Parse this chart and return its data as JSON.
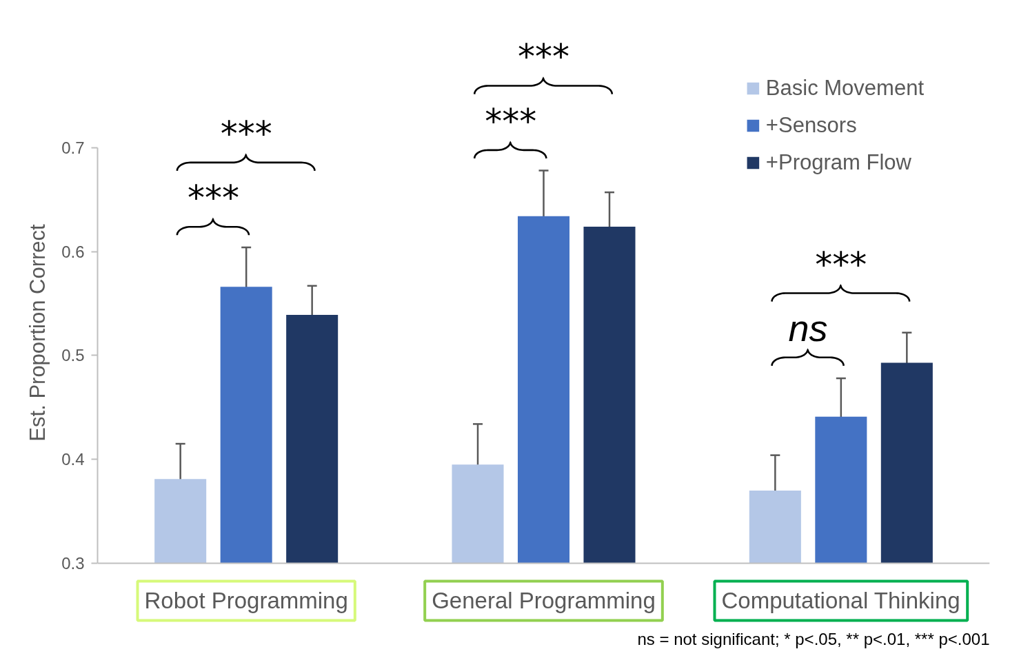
{
  "chart_data": {
    "type": "bar",
    "ylabel": "Est. Proportion Correct",
    "categories": [
      "Robot Programming",
      "General Programming",
      "Computational Thinking"
    ],
    "series": [
      {
        "name": "Basic Movement",
        "color": "#b4c7e7",
        "values": [
          0.381,
          0.395,
          0.37
        ],
        "errors": [
          0.034,
          0.039,
          0.034
        ]
      },
      {
        "name": "+Sensors",
        "color": "#4472c4",
        "values": [
          0.566,
          0.634,
          0.441
        ],
        "errors": [
          0.038,
          0.044,
          0.037
        ]
      },
      {
        "name": "+Program Flow",
        "color": "#203864",
        "values": [
          0.539,
          0.624,
          0.493
        ],
        "errors": [
          0.028,
          0.033,
          0.029
        ]
      }
    ],
    "ylim": [
      0.3,
      0.7
    ],
    "yticks": [
      0.3,
      0.4,
      0.5,
      0.6,
      0.7
    ],
    "legend": "top right",
    "annotations": [
      "***",
      "***",
      "***",
      "***",
      "***",
      "ns",
      "ns = not significant; * p<.05, ** p<.01, *** p<.001"
    ]
  }
}
